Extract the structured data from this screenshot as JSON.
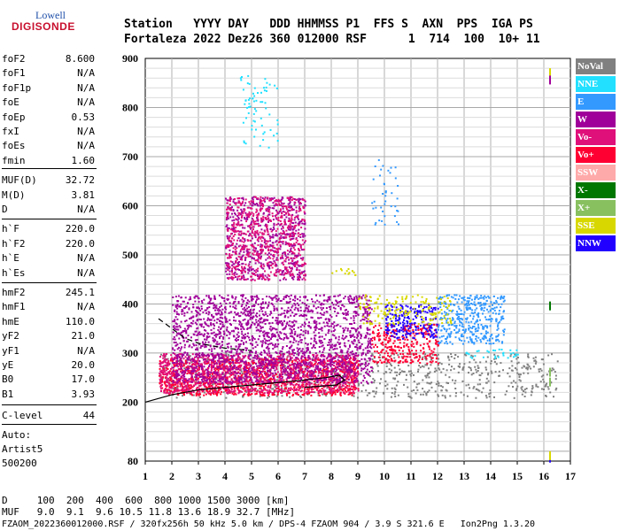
{
  "logo": {
    "top": "Lowell",
    "bottom": "DIGISONDE"
  },
  "header": {
    "labels": "Station   YYYY DAY   DDD HHMMSS P1  FFS S  AXN  PPS  IGA PS",
    "values": "Fortaleza 2022 Dez26 360 012000 RSF      1  714  100  10+ 11"
  },
  "params": [
    {
      "key": "foF2",
      "val": "8.600"
    },
    {
      "key": "foF1",
      "val": "N/A"
    },
    {
      "key": "foF1p",
      "val": "N/A"
    },
    {
      "key": "foE",
      "val": "N/A"
    },
    {
      "key": "foEp",
      "val": "0.53"
    },
    {
      "key": "fxI",
      "val": "N/A"
    },
    {
      "key": "foEs",
      "val": "N/A"
    },
    {
      "key": "fmin",
      "val": "1.60"
    },
    {
      "key": "MUF(D)",
      "val": "32.72"
    },
    {
      "key": "M(D)",
      "val": "3.81"
    },
    {
      "key": "D",
      "val": "N/A"
    },
    {
      "key": "h`F",
      "val": "220.0"
    },
    {
      "key": "h`F2",
      "val": "220.0"
    },
    {
      "key": "h`E",
      "val": "N/A"
    },
    {
      "key": "h`Es",
      "val": "N/A"
    },
    {
      "key": "hmF2",
      "val": "245.1"
    },
    {
      "key": "hmF1",
      "val": "N/A"
    },
    {
      "key": "hmE",
      "val": "110.0"
    },
    {
      "key": "yF2",
      "val": "21.0"
    },
    {
      "key": "yF1",
      "val": "N/A"
    },
    {
      "key": "yE",
      "val": "20.0"
    },
    {
      "key": "B0",
      "val": "17.0"
    },
    {
      "key": "B1",
      "val": "3.93"
    },
    {
      "key": "C-level",
      "val": "44"
    }
  ],
  "auto": {
    "line1": "Auto:",
    "line2": "Artist5",
    "line3": "500200"
  },
  "footer": {
    "d_row": "D     100  200  400  600  800 1000 1500 3000 [km]",
    "muf_row": "MUF   9.0  9.1  9.6 10.5 11.8 13.6 18.9 32.7 [MHz]",
    "file_row": "FZAOM_2022360012000.RSF / 320fx256h 50 kHz 5.0 km / DPS-4 FZAOM 904 / 3.9 S 321.6 E   Ion2Png 1.3.20"
  },
  "legend": [
    {
      "label": "NoVal",
      "color": "#808080"
    },
    {
      "label": "NNE",
      "color": "#22e0ff"
    },
    {
      "label": "E",
      "color": "#3399ff"
    },
    {
      "label": "W",
      "color": "#a0009a"
    },
    {
      "label": "Vo-",
      "color": "#e0107a"
    },
    {
      "label": "Vo+",
      "color": "#ff0033"
    },
    {
      "label": "SSW",
      "color": "#ffaaaa"
    },
    {
      "label": "X-",
      "color": "#007700"
    },
    {
      "label": "X+",
      "color": "#88c060"
    },
    {
      "label": "SSE",
      "color": "#d8d800"
    },
    {
      "label": "NNW",
      "color": "#2200ff"
    }
  ],
  "chart_data": {
    "type": "scatter",
    "title": "",
    "xlabel": "",
    "ylabel": "",
    "xlim": [
      1,
      17
    ],
    "ylim": [
      80,
      900
    ],
    "x_ticks": [
      1,
      2,
      3,
      4,
      5,
      6,
      7,
      8,
      9,
      10,
      11,
      12,
      13,
      14,
      15,
      16,
      17
    ],
    "y_ticks": [
      80,
      200,
      300,
      400,
      500,
      600,
      700,
      800,
      900
    ],
    "grid": true,
    "clusters": [
      {
        "series": "NoVal",
        "x_range": [
          1.5,
          16.5
        ],
        "y_range": [
          210,
          300
        ],
        "density": 0.3
      },
      {
        "series": "Vo+",
        "x_range": [
          1.5,
          9.0
        ],
        "y_range": [
          215,
          290
        ],
        "density": 1.0
      },
      {
        "series": "Vo-",
        "x_range": [
          1.5,
          9.0
        ],
        "y_range": [
          220,
          300
        ],
        "density": 0.9
      },
      {
        "series": "W",
        "x_range": [
          2.0,
          9.5
        ],
        "y_range": [
          240,
          420
        ],
        "density": 0.8
      },
      {
        "series": "Vo+",
        "x_range": [
          9.5,
          12.0
        ],
        "y_range": [
          280,
          360
        ],
        "density": 0.8
      },
      {
        "series": "NNW",
        "x_range": [
          10.0,
          12.0
        ],
        "y_range": [
          330,
          400
        ],
        "density": 0.8
      },
      {
        "series": "E",
        "x_range": [
          12.0,
          14.5
        ],
        "y_range": [
          320,
          420
        ],
        "density": 0.8
      },
      {
        "series": "SSE",
        "x_range": [
          9.0,
          12.5
        ],
        "y_range": [
          360,
          420
        ],
        "density": 0.4
      },
      {
        "series": "NNE",
        "x_range": [
          13.0,
          15.0
        ],
        "y_range": [
          290,
          310
        ],
        "density": 0.4
      },
      {
        "series": "W",
        "x_range": [
          4.0,
          7.0
        ],
        "y_range": [
          450,
          620
        ],
        "density": 0.7
      },
      {
        "series": "Vo-",
        "x_range": [
          4.0,
          7.0
        ],
        "y_range": [
          450,
          620
        ],
        "density": 0.6
      },
      {
        "series": "NNE",
        "x_range": [
          4.5,
          6.0
        ],
        "y_range": [
          720,
          870
        ],
        "density": 0.15
      },
      {
        "series": "E",
        "x_range": [
          9.5,
          10.5
        ],
        "y_range": [
          560,
          700
        ],
        "density": 0.15
      },
      {
        "series": "SSE",
        "x_range": [
          8.0,
          9.0
        ],
        "y_range": [
          460,
          475
        ],
        "density": 0.5
      }
    ],
    "trace_upper": [
      [
        1.5,
        370
      ],
      [
        2.0,
        350
      ],
      [
        2.5,
        330
      ],
      [
        3.0,
        320
      ],
      [
        4.0,
        310
      ],
      [
        5.0,
        305
      ]
    ],
    "trace_lower": [
      [
        1.0,
        200
      ],
      [
        2.0,
        215
      ],
      [
        3.0,
        225
      ],
      [
        4.0,
        230
      ],
      [
        5.0,
        235
      ],
      [
        6.0,
        240
      ],
      [
        7.0,
        245
      ],
      [
        7.8,
        250
      ],
      [
        8.3,
        255
      ],
      [
        8.5,
        245
      ],
      [
        8.2,
        235
      ],
      [
        7.5,
        232
      ],
      [
        7.0,
        230
      ]
    ]
  }
}
